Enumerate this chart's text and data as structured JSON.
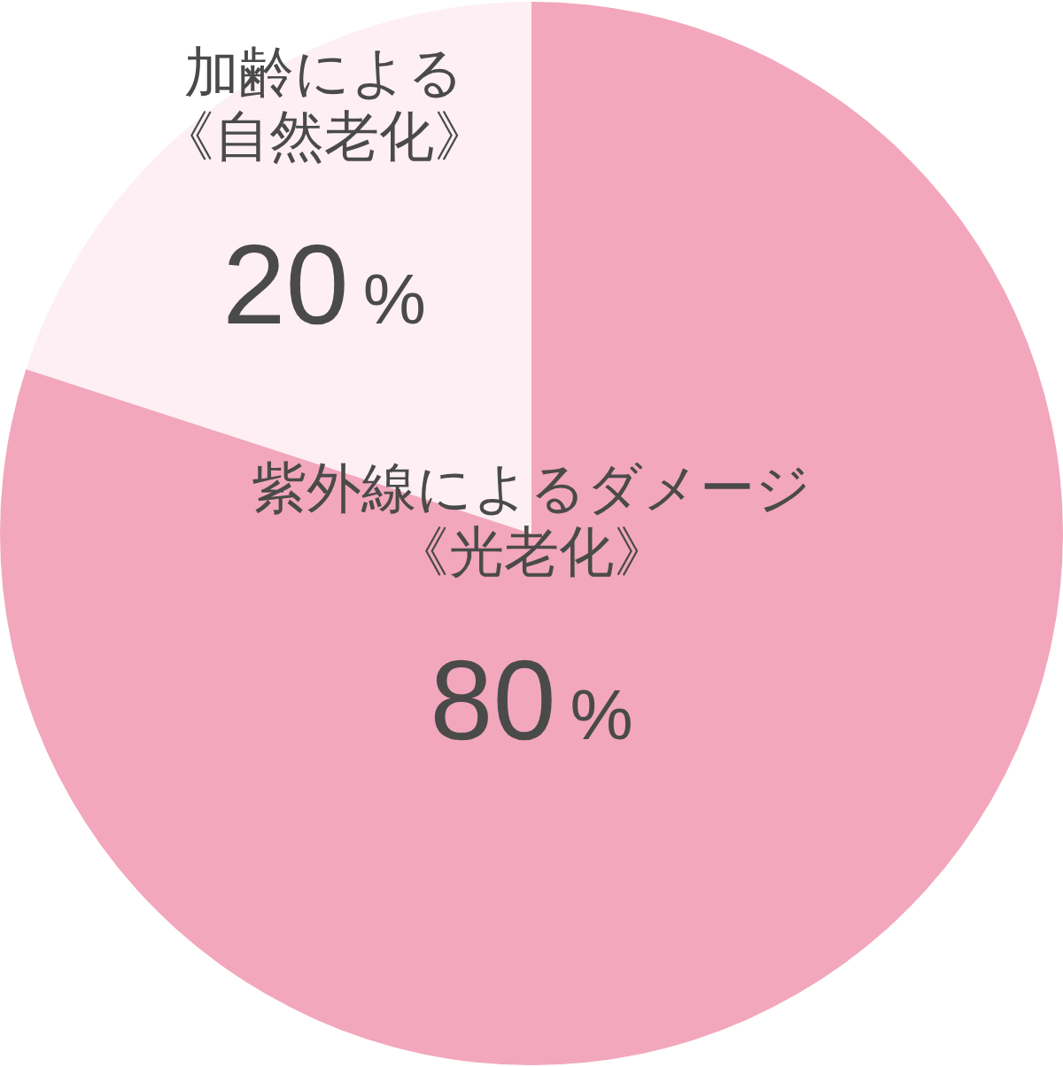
{
  "chart_data": {
    "type": "pie",
    "categories": [
      "紫外線によるダメージ《光老化》",
      "加齢による《自然老化》"
    ],
    "values": [
      80,
      20
    ],
    "value_labels": [
      "80%",
      "20%"
    ],
    "colors": [
      "#f2a7bd",
      "#fdeff3"
    ]
  }
}
